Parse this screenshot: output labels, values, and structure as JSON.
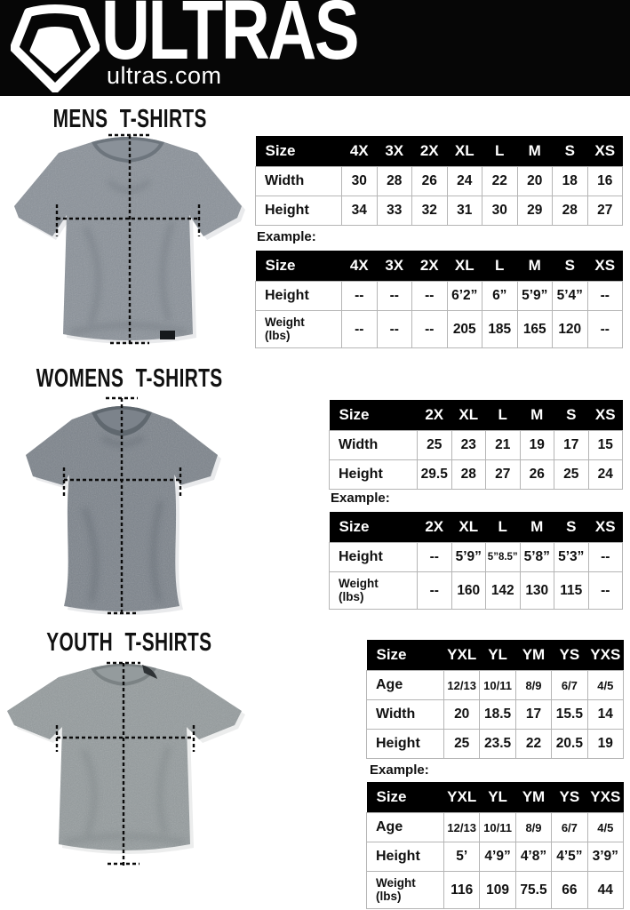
{
  "header": {
    "brand": "ULTRAS",
    "site": "ultras.com",
    "accent_color": "#060606"
  },
  "sections": [
    {
      "id": "mens",
      "title": "MENS T-SHIRTS",
      "example_label": "Example:",
      "size_table": {
        "columns": [
          "Size",
          "4X",
          "3X",
          "2X",
          "XL",
          "L",
          "M",
          "S",
          "XS"
        ],
        "rows": [
          {
            "label": "Width",
            "values": [
              "30",
              "28",
              "26",
              "24",
              "22",
              "20",
              "18",
              "16"
            ]
          },
          {
            "label": "Height",
            "values": [
              "34",
              "33",
              "32",
              "31",
              "30",
              "29",
              "28",
              "27"
            ]
          }
        ]
      },
      "example_table": {
        "columns": [
          "Size",
          "4X",
          "3X",
          "2X",
          "XL",
          "L",
          "M",
          "S",
          "XS"
        ],
        "rows": [
          {
            "label": "Height",
            "values": [
              "--",
              "--",
              "--",
              "6’2”",
              "6”",
              "5’9”",
              "5’4”",
              "--"
            ]
          },
          {
            "label": "Weight (lbs)",
            "values": [
              "--",
              "--",
              "--",
              "205",
              "185",
              "165",
              "120",
              "--"
            ]
          }
        ]
      }
    },
    {
      "id": "womens",
      "title": "WOMENS T-SHIRTS",
      "example_label": "Example:",
      "size_table": {
        "columns": [
          "Size",
          "2X",
          "XL",
          "L",
          "M",
          "S",
          "XS"
        ],
        "rows": [
          {
            "label": "Width",
            "values": [
              "25",
              "23",
              "21",
              "19",
              "17",
              "15"
            ]
          },
          {
            "label": "Height",
            "values": [
              "29.5",
              "28",
              "27",
              "26",
              "25",
              "24"
            ]
          }
        ]
      },
      "example_table": {
        "columns": [
          "Size",
          "2X",
          "XL",
          "L",
          "M",
          "S",
          "XS"
        ],
        "rows": [
          {
            "label": "Height",
            "values": [
              "--",
              "5’9”",
              "5”8.5”",
              "5’8”",
              "5’3”",
              "--"
            ]
          },
          {
            "label": "Weight (lbs)",
            "values": [
              "--",
              "160",
              "142",
              "130",
              "115",
              "--"
            ]
          }
        ]
      }
    },
    {
      "id": "youth",
      "title": "YOUTH T-SHIRTS",
      "example_label": "Example:",
      "size_table": {
        "columns": [
          "Size",
          "YXL",
          "YL",
          "YM",
          "YS",
          "YXS"
        ],
        "rows": [
          {
            "label": "Age",
            "small": true,
            "values": [
              "12/13",
              "10/11",
              "8/9",
              "6/7",
              "4/5"
            ]
          },
          {
            "label": "Width",
            "values": [
              "20",
              "18.5",
              "17",
              "15.5",
              "14"
            ]
          },
          {
            "label": "Height",
            "values": [
              "25",
              "23.5",
              "22",
              "20.5",
              "19"
            ]
          }
        ]
      },
      "example_table": {
        "columns": [
          "Size",
          "YXL",
          "YL",
          "YM",
          "YS",
          "YXS"
        ],
        "rows": [
          {
            "label": "Age",
            "small": true,
            "values": [
              "12/13",
              "10/11",
              "8/9",
              "6/7",
              "4/5"
            ]
          },
          {
            "label": "Height",
            "values": [
              "5’",
              "4’9”",
              "4’8”",
              "4’5”",
              "3’9”"
            ]
          },
          {
            "label": "Weight (lbs)",
            "values": [
              "116",
              "109",
              "75.5",
              "66",
              "44"
            ]
          }
        ]
      }
    }
  ]
}
